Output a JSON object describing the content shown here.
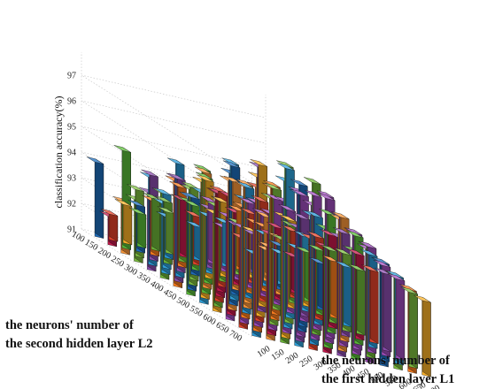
{
  "chart_data": {
    "type": "bar3d",
    "title": "",
    "zlabel": "classification accuracy(%)",
    "x_axis_label": [
      "the neurons' number of",
      "the first hidden layer L1"
    ],
    "y_axis_label": [
      "the neurons' number of",
      "the second hidden layer L2"
    ],
    "x_ticks": [
      "100",
      "150",
      "200",
      "250",
      "300",
      "350",
      "400",
      "450",
      "500",
      "550",
      "600",
      "650",
      "700"
    ],
    "y_ticks": [
      "100",
      "150",
      "200",
      "250",
      "300",
      "350",
      "400",
      "450",
      "500",
      "550",
      "600",
      "650",
      "700"
    ],
    "z_ticks": [
      "91",
      "92",
      "93",
      "94",
      "95",
      "96",
      "97"
    ],
    "zlim": [
      91,
      97.5
    ],
    "grid": true,
    "bar_colors": [
      "#1f6fbf",
      "#31a6e0",
      "#7fc241",
      "#e8452c",
      "#ff7f1e",
      "#c8194e",
      "#ffb429",
      "#8e4fb2",
      "#2a9ad8",
      "#5cbf3a",
      "#ff9a3a",
      "#a24fc0",
      "#6fb83a"
    ],
    "accuracy": [
      [
        93.9,
        92.0,
        92.5,
        92.3,
        93.0,
        92.6,
        93.2,
        92.3,
        93.4,
        92.7,
        93.3,
        92.5,
        92.0
      ],
      [
        92.1,
        94.8,
        92.8,
        93.1,
        92.6,
        93.4,
        92.9,
        93.3,
        92.7,
        93.0,
        92.8,
        93.5,
        92.2
      ],
      [
        93.0,
        93.6,
        94.3,
        93.4,
        94.1,
        93.5,
        93.2,
        93.9,
        93.1,
        93.7,
        93.0,
        92.7,
        92.4
      ],
      [
        93.4,
        94.4,
        93.9,
        94.6,
        94.0,
        94.8,
        94.1,
        93.8,
        94.3,
        93.5,
        93.2,
        93.6,
        92.9
      ],
      [
        94.0,
        93.7,
        95.4,
        94.6,
        95.1,
        94.7,
        95.2,
        94.5,
        94.2,
        93.8,
        94.0,
        93.1,
        92.8
      ],
      [
        94.3,
        95.0,
        94.7,
        95.5,
        94.8,
        96.0,
        95.3,
        94.9,
        95.1,
        94.4,
        93.9,
        93.5,
        93.2
      ],
      [
        95.1,
        94.6,
        95.8,
        95.0,
        96.3,
        95.6,
        96.5,
        95.7,
        95.0,
        94.8,
        94.2,
        93.8,
        93.3
      ],
      [
        94.6,
        95.5,
        95.2,
        96.1,
        95.7,
        96.6,
        96.0,
        96.8,
        95.9,
        95.2,
        94.6,
        94.0,
        93.5
      ],
      [
        95.3,
        94.9,
        96.0,
        95.4,
        96.4,
        96.1,
        97.1,
        96.5,
        96.2,
        95.6,
        95.0,
        94.3,
        93.8
      ],
      [
        94.8,
        95.6,
        95.3,
        96.2,
        95.9,
        96.7,
        96.3,
        96.9,
        96.4,
        95.8,
        95.2,
        94.6,
        94.0
      ],
      [
        95.0,
        94.7,
        95.8,
        95.5,
        96.1,
        96.6,
        96.2,
        96.7,
        96.0,
        95.5,
        95.1,
        94.5,
        94.1
      ],
      [
        94.5,
        95.2,
        94.9,
        95.7,
        95.4,
        96.0,
        95.6,
        96.1,
        95.7,
        95.3,
        94.8,
        94.4,
        93.9
      ],
      [
        94.2,
        94.6,
        95.0,
        94.8,
        95.3,
        95.1,
        95.6,
        95.2,
        95.4,
        95.0,
        94.6,
        94.2,
        93.9
      ]
    ]
  }
}
